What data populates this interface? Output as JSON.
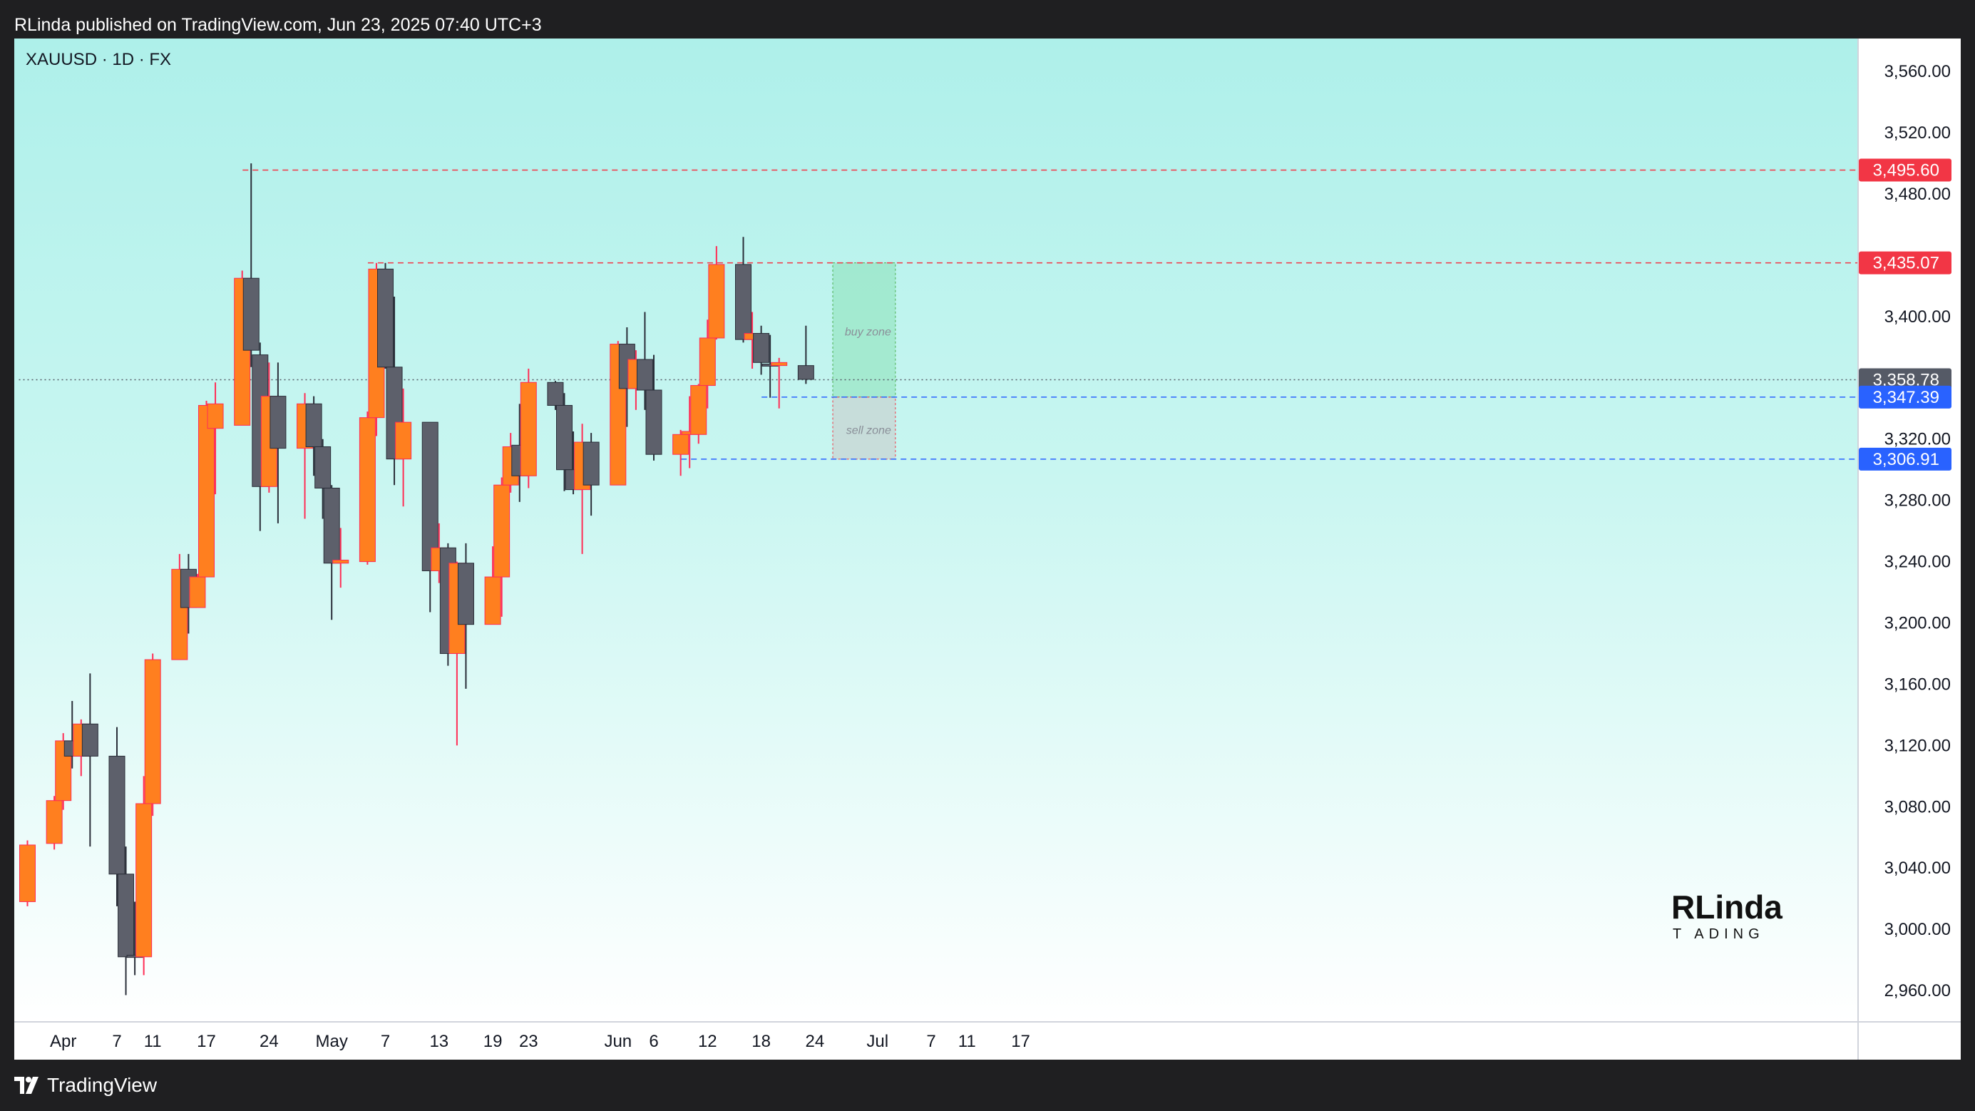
{
  "header": {
    "publish_text": "RLinda published on TradingView.com, Jun 23, 2025 07:40 UTC+3"
  },
  "chart": {
    "symbol_label": "XAUUSD · 1D · FX",
    "watermark_top": "RLinda",
    "watermark_bottom": "T   ADING",
    "zones": {
      "buy_label": "buy zone",
      "sell_label": "sell zone"
    }
  },
  "footer": {
    "brand": "TradingView"
  },
  "colors": {
    "bull": "#ff7f1f",
    "bear": "#5d606b",
    "bull_wick": "#ff2d55",
    "bear_wick": "#2a2e39",
    "red_tag": "#f23645",
    "blue_tag": "#2962ff",
    "grey_tag": "#555a66"
  },
  "chart_data": {
    "type": "candlestick",
    "symbol": "XAUUSD",
    "timeframe": "1D",
    "ylim": [
      2940,
      3575
    ],
    "y_ticks": [
      2960,
      3000,
      3040,
      3080,
      3120,
      3160,
      3200,
      3240,
      3280,
      3320,
      3400,
      3480,
      3520,
      3560
    ],
    "y_tick_labels": [
      "2,960.00",
      "3,000.00",
      "3,040.00",
      "3,080.00",
      "3,120.00",
      "3,160.00",
      "3,200.00",
      "3,240.00",
      "3,280.00",
      "3,320.00",
      "3,400.00",
      "3,480.00",
      "3,520.00",
      "3,560.00"
    ],
    "x_labels": [
      {
        "date": "2025-04-01",
        "label": "Apr"
      },
      {
        "date": "2025-04-07",
        "label": "7"
      },
      {
        "date": "2025-04-11",
        "label": "11"
      },
      {
        "date": "2025-04-17",
        "label": "17"
      },
      {
        "date": "2025-04-24",
        "label": "24"
      },
      {
        "date": "2025-05-01",
        "label": "May"
      },
      {
        "date": "2025-05-07",
        "label": "7"
      },
      {
        "date": "2025-05-13",
        "label": "13"
      },
      {
        "date": "2025-05-19",
        "label": "19"
      },
      {
        "date": "2025-05-23",
        "label": "23"
      },
      {
        "date": "2025-06-02",
        "label": "Jun"
      },
      {
        "date": "2025-06-06",
        "label": "6"
      },
      {
        "date": "2025-06-12",
        "label": "12"
      },
      {
        "date": "2025-06-18",
        "label": "18"
      },
      {
        "date": "2025-06-24",
        "label": "24"
      },
      {
        "date": "2025-07-01",
        "label": "Jul"
      },
      {
        "date": "2025-07-07",
        "label": "7"
      },
      {
        "date": "2025-07-11",
        "label": "11"
      },
      {
        "date": "2025-07-17",
        "label": "17"
      }
    ],
    "candles": [
      {
        "date": "2025-03-28",
        "open": 3018,
        "high": 3058,
        "low": 3015,
        "close": 3055
      },
      {
        "date": "2025-03-31",
        "open": 3056,
        "high": 3087,
        "low": 3052,
        "close": 3084
      },
      {
        "date": "2025-04-01",
        "open": 3084,
        "high": 3128,
        "low": 3078,
        "close": 3123
      },
      {
        "date": "2025-04-02",
        "open": 3123,
        "high": 3149,
        "low": 3105,
        "close": 3113
      },
      {
        "date": "2025-04-03",
        "open": 3113,
        "high": 3137,
        "low": 3100,
        "close": 3134
      },
      {
        "date": "2025-04-04",
        "open": 3134,
        "high": 3167,
        "low": 3054,
        "close": 3113
      },
      {
        "date": "2025-04-07",
        "open": 3113,
        "high": 3132,
        "low": 3015,
        "close": 3036
      },
      {
        "date": "2025-04-08",
        "open": 3036,
        "high": 3054,
        "low": 2957,
        "close": 2982
      },
      {
        "date": "2025-04-09",
        "open": 2983,
        "high": 3018,
        "low": 2970,
        "close": 2982
      },
      {
        "date": "2025-04-10",
        "open": 2982,
        "high": 3100,
        "low": 2970,
        "close": 3082
      },
      {
        "date": "2025-04-11",
        "open": 3082,
        "high": 3180,
        "low": 3074,
        "close": 3176
      },
      {
        "date": "2025-04-14",
        "open": 3176,
        "high": 3245,
        "low": 3176,
        "close": 3235
      },
      {
        "date": "2025-04-15",
        "open": 3235,
        "high": 3245,
        "low": 3193,
        "close": 3210
      },
      {
        "date": "2025-04-16",
        "open": 3210,
        "high": 3232,
        "low": 3210,
        "close": 3230
      },
      {
        "date": "2025-04-17",
        "open": 3230,
        "high": 3345,
        "low": 3230,
        "close": 3342
      },
      {
        "date": "2025-04-18",
        "open": 3327,
        "high": 3357,
        "low": 3284,
        "close": 3343
      },
      {
        "date": "2025-04-21",
        "open": 3329,
        "high": 3430,
        "low": 3329,
        "close": 3425
      },
      {
        "date": "2025-04-22",
        "open": 3425,
        "high": 3500,
        "low": 3367,
        "close": 3378
      },
      {
        "date": "2025-04-23",
        "open": 3375,
        "high": 3383,
        "low": 3260,
        "close": 3289
      },
      {
        "date": "2025-04-24",
        "open": 3289,
        "high": 3370,
        "low": 3285,
        "close": 3348
      },
      {
        "date": "2025-04-25",
        "open": 3348,
        "high": 3370,
        "low": 3265,
        "close": 3314
      },
      {
        "date": "2025-04-28",
        "open": 3314,
        "high": 3350,
        "low": 3268,
        "close": 3343
      },
      {
        "date": "2025-04-29",
        "open": 3343,
        "high": 3348,
        "low": 3296,
        "close": 3315
      },
      {
        "date": "2025-04-30",
        "open": 3315,
        "high": 3320,
        "low": 3268,
        "close": 3288
      },
      {
        "date": "2025-05-01",
        "open": 3288,
        "high": 3290,
        "low": 3202,
        "close": 3239
      },
      {
        "date": "2025-05-02",
        "open": 3239,
        "high": 3262,
        "low": 3223,
        "close": 3241
      },
      {
        "date": "2025-05-05",
        "open": 3240,
        "high": 3338,
        "low": 3238,
        "close": 3334
      },
      {
        "date": "2025-05-06",
        "open": 3334,
        "high": 3435,
        "low": 3322,
        "close": 3431
      },
      {
        "date": "2025-05-07",
        "open": 3431,
        "high": 3435,
        "low": 3366,
        "close": 3367
      },
      {
        "date": "2025-05-08",
        "open": 3367,
        "high": 3413,
        "low": 3290,
        "close": 3307
      },
      {
        "date": "2025-05-09",
        "open": 3307,
        "high": 3353,
        "low": 3276,
        "close": 3331
      },
      {
        "date": "2025-05-12",
        "open": 3331,
        "high": 3331,
        "low": 3207,
        "close": 3234
      },
      {
        "date": "2025-05-13",
        "open": 3234,
        "high": 3265,
        "low": 3226,
        "close": 3249
      },
      {
        "date": "2025-05-14",
        "open": 3249,
        "high": 3252,
        "low": 3172,
        "close": 3180
      },
      {
        "date": "2025-05-15",
        "open": 3180,
        "high": 3240,
        "low": 3120,
        "close": 3239
      },
      {
        "date": "2025-05-16",
        "open": 3239,
        "high": 3252,
        "low": 3157,
        "close": 3199
      },
      {
        "date": "2025-05-19",
        "open": 3199,
        "high": 3250,
        "low": 3199,
        "close": 3230
      },
      {
        "date": "2025-05-20",
        "open": 3230,
        "high": 3295,
        "low": 3204,
        "close": 3290
      },
      {
        "date": "2025-05-21",
        "open": 3290,
        "high": 3324,
        "low": 3285,
        "close": 3315
      },
      {
        "date": "2025-05-22",
        "open": 3316,
        "high": 3343,
        "low": 3279,
        "close": 3296
      },
      {
        "date": "2025-05-23",
        "open": 3296,
        "high": 3366,
        "low": 3288,
        "close": 3357
      },
      {
        "date": "2025-05-26",
        "open": 3357,
        "high": 3358,
        "low": 3339,
        "close": 3342
      },
      {
        "date": "2025-05-27",
        "open": 3342,
        "high": 3350,
        "low": 3286,
        "close": 3300
      },
      {
        "date": "2025-05-28",
        "open": 3300,
        "high": 3325,
        "low": 3284,
        "close": 3287
      },
      {
        "date": "2025-05-29",
        "open": 3287,
        "high": 3330,
        "low": 3245,
        "close": 3318
      },
      {
        "date": "2025-05-30",
        "open": 3318,
        "high": 3324,
        "low": 3270,
        "close": 3290
      },
      {
        "date": "2025-06-02",
        "open": 3290,
        "high": 3384,
        "low": 3290,
        "close": 3382
      },
      {
        "date": "2025-06-03",
        "open": 3382,
        "high": 3393,
        "low": 3328,
        "close": 3353
      },
      {
        "date": "2025-06-04",
        "open": 3353,
        "high": 3378,
        "low": 3339,
        "close": 3372
      },
      {
        "date": "2025-06-05",
        "open": 3372,
        "high": 3403,
        "low": 3339,
        "close": 3352
      },
      {
        "date": "2025-06-06",
        "open": 3352,
        "high": 3375,
        "low": 3306,
        "close": 3310
      },
      {
        "date": "2025-06-09",
        "open": 3310,
        "high": 3326,
        "low": 3296,
        "close": 3323
      },
      {
        "date": "2025-06-10",
        "open": 3323,
        "high": 3348,
        "low": 3301,
        "close": 3325
      },
      {
        "date": "2025-06-11",
        "open": 3323,
        "high": 3356,
        "low": 3317,
        "close": 3355
      },
      {
        "date": "2025-06-12",
        "open": 3355,
        "high": 3398,
        "low": 3340,
        "close": 3386
      },
      {
        "date": "2025-06-13",
        "open": 3386,
        "high": 3446,
        "low": 3385,
        "close": 3434
      },
      {
        "date": "2025-06-16",
        "open": 3434,
        "high": 3452,
        "low": 3383,
        "close": 3385
      },
      {
        "date": "2025-06-17",
        "open": 3385,
        "high": 3403,
        "low": 3366,
        "close": 3389
      },
      {
        "date": "2025-06-18",
        "open": 3389,
        "high": 3394,
        "low": 3362,
        "close": 3370
      },
      {
        "date": "2025-06-19",
        "open": 3369,
        "high": 3388,
        "low": 3347,
        "close": 3368
      },
      {
        "date": "2025-06-20",
        "open": 3368,
        "high": 3373,
        "low": 3340,
        "close": 3370
      },
      {
        "date": "2025-06-23",
        "open": 3368,
        "high": 3394,
        "low": 3356,
        "close": 3359
      }
    ],
    "levels": [
      {
        "price": 3495.6,
        "label": "3,495.60",
        "style": "dashed",
        "color": "#f23645",
        "from_date": "2025-04-22"
      },
      {
        "price": 3435.07,
        "label": "3,435.07",
        "style": "dashed",
        "color": "#f23645",
        "from_date": "2025-05-06"
      },
      {
        "price": 3358.78,
        "label": "3,358.78",
        "style": "dotted",
        "color": "#555a66",
        "from_date": "2025-03-28"
      },
      {
        "price": 3347.39,
        "label": "3,347.39",
        "style": "dashed",
        "color": "#2962ff",
        "from_date": "2025-06-19"
      },
      {
        "price": 3306.91,
        "label": "3,306.91",
        "style": "dashed",
        "color": "#2962ff",
        "from_date": "2025-06-10"
      }
    ],
    "zones": [
      {
        "name": "buy zone",
        "from_date": "2025-06-26",
        "to_date": "2025-07-03",
        "top": 3435.07,
        "bottom": 3347.39,
        "fill": "rgba(128,222,170,0.45)",
        "stroke": "#4caf50"
      },
      {
        "name": "sell zone",
        "from_date": "2025-06-26",
        "to_date": "2025-07-03",
        "top": 3347.39,
        "bottom": 3306.91,
        "fill": "rgba(200,200,200,0.55)",
        "stroke": "#f23645"
      }
    ]
  }
}
